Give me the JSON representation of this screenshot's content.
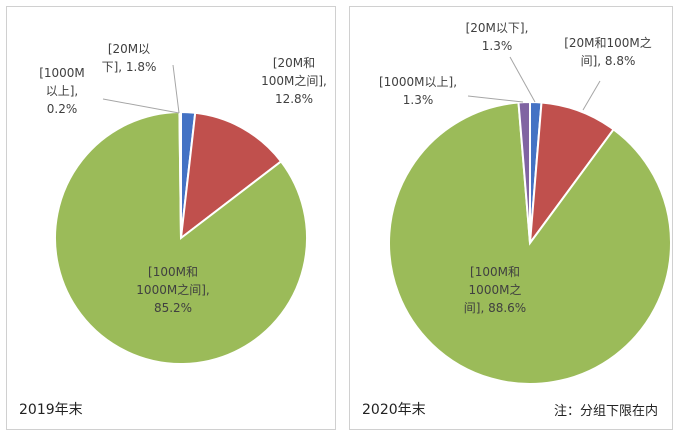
{
  "chart_data": [
    {
      "type": "pie",
      "caption": "2019年末",
      "slices": [
        {
          "label_lines": [
            "[20M以",
            "下], 1.8%"
          ],
          "value": 1.8,
          "color": "#4472C4"
        },
        {
          "label_lines": [
            "[20M和",
            "100M之间],",
            "12.8%"
          ],
          "value": 12.8,
          "color": "#C0504D"
        },
        {
          "label_lines": [
            "[100M和",
            "1000M之间],",
            "85.2%"
          ],
          "value": 85.2,
          "color": "#9BBB59"
        },
        {
          "label_lines": [
            "[1000M",
            "以上],",
            "0.2%"
          ],
          "value": 0.2,
          "color": "#8064A2"
        }
      ]
    },
    {
      "type": "pie",
      "caption": "2020年末",
      "slices": [
        {
          "label_lines": [
            "[20M以下],",
            "1.3%"
          ],
          "value": 1.3,
          "color": "#4472C4"
        },
        {
          "label_lines": [
            "[20M和100M之",
            "间], 8.8%"
          ],
          "value": 8.8,
          "color": "#C0504D"
        },
        {
          "label_lines": [
            "[100M和",
            "1000M之",
            "间], 88.6%"
          ],
          "value": 88.6,
          "color": "#9BBB59"
        },
        {
          "label_lines": [
            "[1000M以上],",
            "1.3%"
          ],
          "value": 1.3,
          "color": "#8064A2"
        }
      ]
    }
  ],
  "note": "注：分组下限在内"
}
